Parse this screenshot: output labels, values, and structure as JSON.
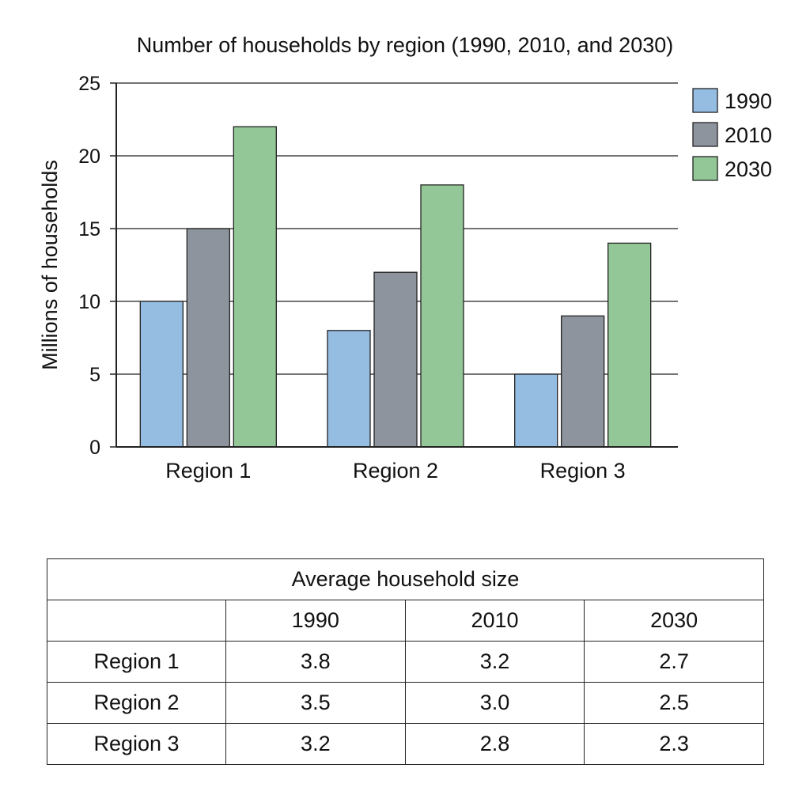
{
  "chart_data": {
    "type": "bar",
    "title": "Number of households by region (1990, 2010, and 2030)",
    "xlabel": "",
    "ylabel": "Millions of households",
    "categories": [
      "Region 1",
      "Region 2",
      "Region 3"
    ],
    "series": [
      {
        "name": "1990",
        "values": [
          10,
          8,
          5
        ],
        "color": "#95bde2"
      },
      {
        "name": "2010",
        "values": [
          15,
          12,
          9
        ],
        "color": "#8e949d"
      },
      {
        "name": "2030",
        "values": [
          22,
          18,
          14
        ],
        "color": "#93c797"
      }
    ],
    "ylim": [
      0,
      25
    ],
    "yticks": [
      0,
      5,
      10,
      15,
      20,
      25
    ],
    "grid": true,
    "legend": "top-right"
  },
  "table": {
    "title": "Average household size",
    "columns": [
      "1990",
      "2010",
      "2030"
    ],
    "rows": [
      {
        "label": "Region 1",
        "values": [
          "3.8",
          "3.2",
          "2.7"
        ]
      },
      {
        "label": "Region 2",
        "values": [
          "3.5",
          "3.0",
          "2.5"
        ]
      },
      {
        "label": "Region 3",
        "values": [
          "3.2",
          "2.8",
          "2.3"
        ]
      }
    ]
  }
}
